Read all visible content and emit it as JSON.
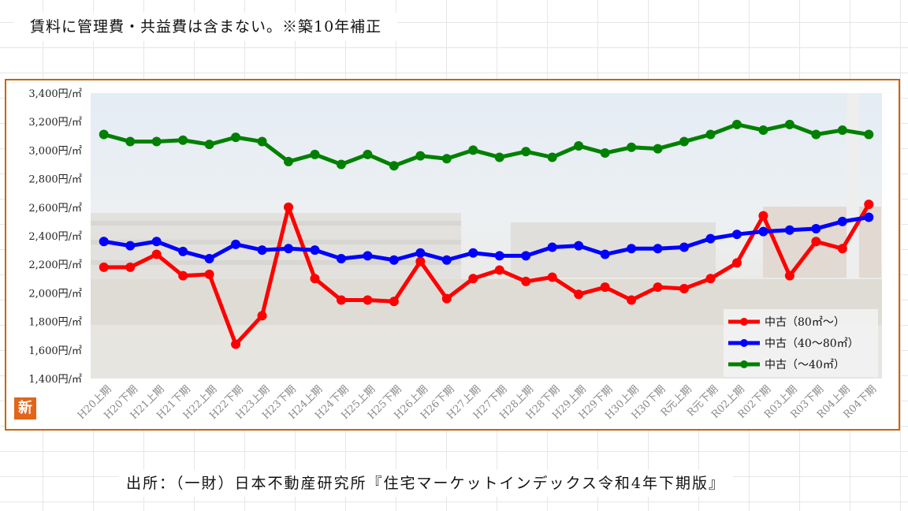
{
  "page": {
    "note": "賃料に管理費・共益費は含まない。※築10年補正",
    "source": "出所：（一財）日本不動産研究所『住宅マーケットインデックス令和4年下期版』",
    "badge": "新"
  },
  "chart_data": {
    "type": "line",
    "categories": [
      "H20上期",
      "H20下期",
      "H21上期",
      "H21下期",
      "H22上期",
      "H22下期",
      "H23上期",
      "H23下期",
      "H24上期",
      "H24下期",
      "H25上期",
      "H25下期",
      "H26上期",
      "H26下期",
      "H27上期",
      "H27下期",
      "H28上期",
      "H28下期",
      "H29上期",
      "H29下期",
      "H30上期",
      "H30下期",
      "R元上期",
      "R元下期",
      "R02上期",
      "R02下期",
      "R03上期",
      "R03下期",
      "R04上期",
      "R04下期"
    ],
    "ylim": [
      1400,
      3400
    ],
    "yticks": [
      1400,
      1600,
      1800,
      2000,
      2200,
      2400,
      2600,
      2800,
      3000,
      3200,
      3400
    ],
    "ytick_labels": [
      "1,400円/㎡",
      "1,600円/㎡",
      "1,800円/㎡",
      "2,000円/㎡",
      "2,200円/㎡",
      "2,400円/㎡",
      "2,600円/㎡",
      "2,800円/㎡",
      "3,000円/㎡",
      "3,200円/㎡",
      "3,400円/㎡"
    ],
    "legend_position": "bottom-right",
    "grid": false,
    "series": [
      {
        "name": "中古（80㎡～）",
        "color": "#ff0000",
        "values": [
          2180,
          2180,
          2270,
          2120,
          2130,
          1640,
          1840,
          2600,
          2100,
          1950,
          1950,
          1940,
          2220,
          1960,
          2100,
          2160,
          2080,
          2110,
          1990,
          2040,
          1950,
          2040,
          2030,
          2100,
          2210,
          2540,
          2120,
          2360,
          2310,
          2620
        ]
      },
      {
        "name": "中古（40～80㎡）",
        "color": "#0000ff",
        "values": [
          2360,
          2330,
          2360,
          2290,
          2240,
          2340,
          2300,
          2310,
          2300,
          2240,
          2260,
          2230,
          2280,
          2230,
          2280,
          2260,
          2260,
          2320,
          2330,
          2270,
          2310,
          2310,
          2320,
          2380,
          2410,
          2430,
          2440,
          2450,
          2500,
          2530
        ]
      },
      {
        "name": "中古（～40㎡）",
        "color": "#008000",
        "values": [
          3110,
          3060,
          3060,
          3070,
          3040,
          3090,
          3060,
          2920,
          2970,
          2900,
          2970,
          2890,
          2960,
          2940,
          3000,
          2950,
          2990,
          2950,
          3030,
          2980,
          3020,
          3010,
          3060,
          3110,
          3180,
          3140,
          3180,
          3110,
          3140,
          3110
        ]
      }
    ]
  }
}
